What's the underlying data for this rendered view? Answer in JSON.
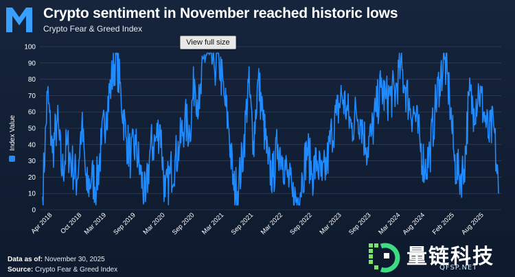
{
  "header": {
    "title": "Crypto sentiment in November reached historic lows",
    "subtitle": "Crypto Fear & Greed Index"
  },
  "tooltip": {
    "label": "View full size"
  },
  "footer": {
    "data_as_of_label": "Data as of:",
    "data_as_of_value": "November 30, 2025",
    "source_label": "Source:",
    "source_value": "Crypto Fear & Greed Index"
  },
  "watermark": {
    "brand": "量链科技",
    "site": "QFSP.NET"
  },
  "colors": {
    "line": "#1f8bff",
    "background": "#14223a",
    "grid": "#3a4a64",
    "logo": "#3aa0ff"
  },
  "chart_data": {
    "type": "line",
    "title": "Crypto sentiment in November reached historic lows",
    "subtitle": "Crypto Fear & Greed Index",
    "xlabel": "",
    "ylabel": "Index Value",
    "ylim": [
      0,
      100
    ],
    "yticks": [
      0,
      10,
      20,
      30,
      40,
      50,
      60,
      70,
      80,
      90,
      100
    ],
    "xticks": [
      "Apr 2018",
      "Oct 2018",
      "Mar 2019",
      "Sep 2019",
      "Mar 2020",
      "Sep 2020",
      "Mar 2021",
      "Sep 2021",
      "Mar 2022",
      "Sep 2022",
      "Mar 2023",
      "Sep 2023",
      "Mar 2024",
      "Aug 2024",
      "Feb 2025",
      "Aug 2025"
    ],
    "grid": true,
    "legend": "left",
    "series": [
      {
        "name": "Index Value",
        "x": [
          "2018-02",
          "2018-03",
          "2018-04",
          "2018-05",
          "2018-06",
          "2018-07",
          "2018-08",
          "2018-09",
          "2018-10",
          "2018-11",
          "2018-12",
          "2019-01",
          "2019-02",
          "2019-03",
          "2019-04",
          "2019-05",
          "2019-06",
          "2019-07",
          "2019-08",
          "2019-09",
          "2019-10",
          "2019-11",
          "2019-12",
          "2020-01",
          "2020-02",
          "2020-03",
          "2020-04",
          "2020-05",
          "2020-06",
          "2020-07",
          "2020-08",
          "2020-09",
          "2020-10",
          "2020-11",
          "2020-12",
          "2021-01",
          "2021-02",
          "2021-03",
          "2021-04",
          "2021-05",
          "2021-06",
          "2021-07",
          "2021-08",
          "2021-09",
          "2021-10",
          "2021-11",
          "2021-12",
          "2022-01",
          "2022-02",
          "2022-03",
          "2022-04",
          "2022-05",
          "2022-06",
          "2022-07",
          "2022-08",
          "2022-09",
          "2022-10",
          "2022-11",
          "2022-12",
          "2023-01",
          "2023-02",
          "2023-03",
          "2023-04",
          "2023-05",
          "2023-06",
          "2023-07",
          "2023-08",
          "2023-09",
          "2023-10",
          "2023-11",
          "2023-12",
          "2024-01",
          "2024-02",
          "2024-03",
          "2024-04",
          "2024-05",
          "2024-06",
          "2024-07",
          "2024-08",
          "2024-09",
          "2024-10",
          "2024-11",
          "2024-12",
          "2025-01",
          "2025-02",
          "2025-03",
          "2025-04",
          "2025-05",
          "2025-06",
          "2025-07",
          "2025-08",
          "2025-09",
          "2025-10",
          "2025-11"
        ],
        "values": [
          8,
          72,
          35,
          55,
          22,
          40,
          28,
          18,
          52,
          12,
          20,
          15,
          40,
          60,
          78,
          95,
          70,
          45,
          32,
          40,
          22,
          5,
          38,
          42,
          52,
          8,
          22,
          30,
          40,
          55,
          48,
          80,
          62,
          95,
          95,
          88,
          92,
          70,
          50,
          12,
          15,
          38,
          78,
          42,
          80,
          55,
          28,
          20,
          40,
          32,
          20,
          8,
          6,
          20,
          38,
          22,
          30,
          18,
          28,
          48,
          58,
          70,
          62,
          50,
          60,
          55,
          38,
          45,
          60,
          75,
          68,
          70,
          72,
          88,
          75,
          62,
          58,
          40,
          25,
          35,
          60,
          80,
          92,
          70,
          30,
          20,
          25,
          70,
          62,
          74,
          60,
          45,
          52,
          10
        ]
      }
    ]
  }
}
